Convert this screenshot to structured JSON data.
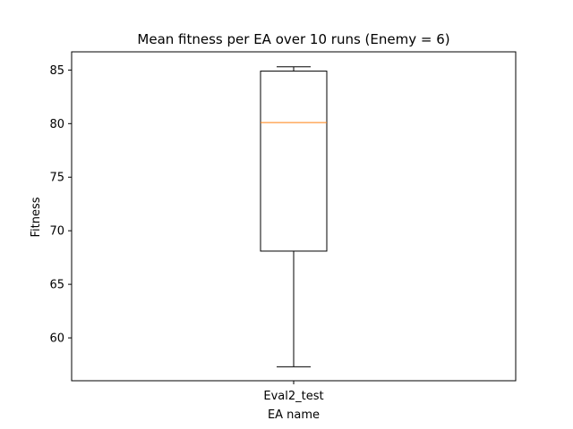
{
  "chart_data": {
    "type": "box",
    "title": "Mean fitness per EA over 10 runs (Enemy = 6)",
    "xlabel": "EA name",
    "ylabel": "Fitness",
    "categories": [
      "Eval2_test"
    ],
    "boxes": [
      {
        "name": "Eval2_test",
        "min": 57.3,
        "q1": 68.1,
        "median": 80.1,
        "q3": 84.9,
        "max": 85.3
      }
    ],
    "yticks": [
      60,
      65,
      70,
      75,
      80,
      85
    ],
    "ylim": [
      56.0,
      86.7
    ],
    "grid": false,
    "colors": {
      "box": "#000000",
      "median": "#ff7f0e",
      "axes": "#000000"
    }
  }
}
